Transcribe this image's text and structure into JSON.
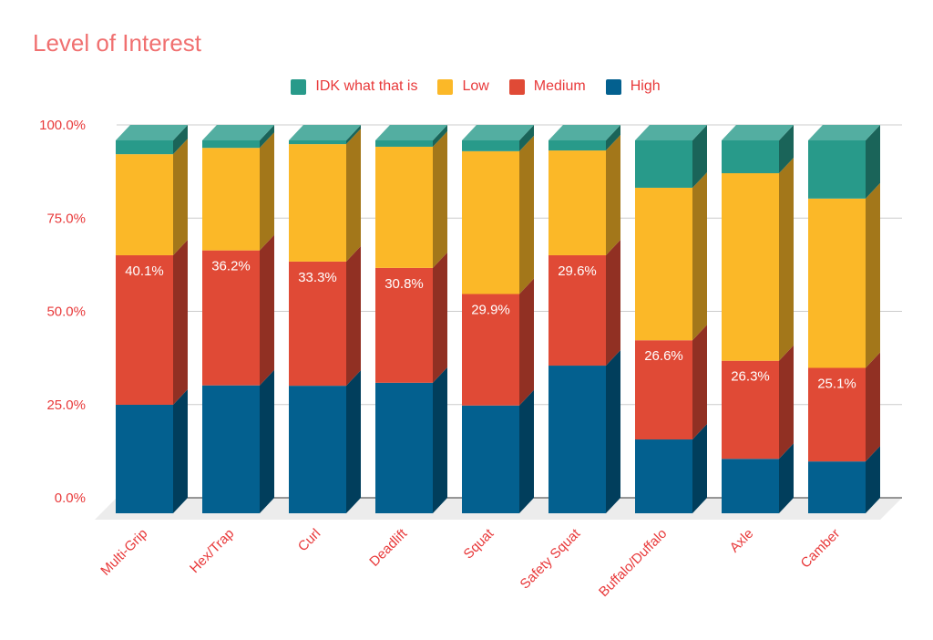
{
  "chart_data": {
    "type": "bar",
    "stacked": true,
    "style": "3d",
    "title": "Level of Interest",
    "xlabel": "",
    "ylabel": "",
    "ylim": [
      0,
      100
    ],
    "yticks": [
      "0.0%",
      "25.0%",
      "50.0%",
      "75.0%",
      "100.0%"
    ],
    "grid": true,
    "legend_position": "top",
    "categories": [
      "Multi-Grip",
      "Hex/Trap",
      "Curl",
      "Deadlift",
      "Squat",
      "Safety Squat",
      "Buffalo/Duffalo",
      "Axle",
      "Camber"
    ],
    "series": [
      {
        "name": "High",
        "color": "#03608f",
        "values": [
          29.1,
          34.3,
          34.2,
          35.0,
          28.9,
          39.6,
          19.8,
          14.6,
          13.9
        ]
      },
      {
        "name": "Medium",
        "color": "#e04a36",
        "values": [
          40.1,
          36.2,
          33.3,
          30.8,
          29.9,
          29.6,
          26.6,
          26.3,
          25.1
        ],
        "labels": [
          "40.1%",
          "36.2%",
          "33.3%",
          "30.8%",
          "29.9%",
          "29.6%",
          "26.6%",
          "26.3%",
          "25.1%"
        ]
      },
      {
        "name": "Low",
        "color": "#fbb828",
        "values": [
          27.1,
          27.5,
          31.5,
          32.5,
          38.3,
          28.1,
          40.9,
          50.3,
          45.4
        ]
      },
      {
        "name": "IDK what that is",
        "color": "#289a8a",
        "values": [
          3.7,
          2.0,
          1.0,
          1.7,
          2.9,
          2.7,
          12.7,
          8.8,
          15.6
        ]
      }
    ],
    "legend_order": [
      "IDK what that is",
      "Low",
      "Medium",
      "High"
    ]
  }
}
